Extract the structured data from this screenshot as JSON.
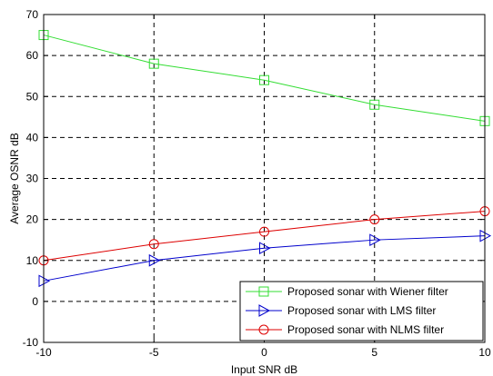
{
  "chart_data": {
    "type": "line",
    "title": "",
    "xlabel": "Input SNR dB",
    "ylabel": "Average OSNR dB",
    "xlim": [
      -10,
      10
    ],
    "ylim": [
      -10,
      70
    ],
    "xticks": [
      -10,
      -5,
      0,
      5,
      10
    ],
    "yticks": [
      -10,
      0,
      10,
      20,
      30,
      40,
      50,
      60,
      70
    ],
    "x_tick_labels": [
      "-10",
      "-5",
      "0",
      "5",
      "10"
    ],
    "y_tick_labels": [
      "-10",
      "0",
      "10",
      "20",
      "30",
      "40",
      "50",
      "60",
      "70"
    ],
    "grid": true,
    "grid_style": "dashed",
    "legend_position": "bottom-right",
    "x": [
      -10,
      -5,
      0,
      5,
      10
    ],
    "series": [
      {
        "name": "Proposed sonar with Wiener filter",
        "values": [
          65,
          58,
          54,
          48,
          44
        ],
        "color": "#33dd33",
        "marker": "square"
      },
      {
        "name": "Proposed sonar with LMS filter",
        "values": [
          5,
          10,
          13,
          15,
          16
        ],
        "color": "#0000cc",
        "marker": "triangle-right"
      },
      {
        "name": "Proposed sonar with NLMS filter",
        "values": [
          10,
          14,
          17,
          20,
          22
        ],
        "color": "#dd0000",
        "marker": "circle"
      }
    ]
  }
}
